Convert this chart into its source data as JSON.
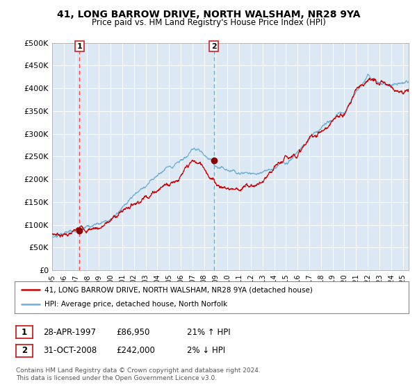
{
  "title": "41, LONG BARROW DRIVE, NORTH WALSHAM, NR28 9YA",
  "subtitle": "Price paid vs. HM Land Registry's House Price Index (HPI)",
  "ylim": [
    0,
    500000
  ],
  "yticks": [
    0,
    50000,
    100000,
    150000,
    200000,
    250000,
    300000,
    350000,
    400000,
    450000,
    500000
  ],
  "ytick_labels": [
    "£0",
    "£50K",
    "£100K",
    "£150K",
    "£200K",
    "£250K",
    "£300K",
    "£350K",
    "£400K",
    "£450K",
    "£500K"
  ],
  "sale1_date": 1997.33,
  "sale1_price": 86950,
  "sale1_label": "1",
  "sale2_date": 2008.83,
  "sale2_price": 242000,
  "sale2_label": "2",
  "hpi_color": "#6baed6",
  "price_color": "#cc0000",
  "dot_color": "#880000",
  "vline1_color": "#ff4444",
  "vline1_style": "--",
  "vline2_color": "#6baed6",
  "vline2_style": "--",
  "bg_color": "#dce9f5",
  "grid_color": "#ffffff",
  "legend_label1": "41, LONG BARROW DRIVE, NORTH WALSHAM, NR28 9YA (detached house)",
  "legend_label2": "HPI: Average price, detached house, North Norfolk",
  "info1_label": "1",
  "info1_date": "28-APR-1997",
  "info1_price": "£86,950",
  "info1_hpi": "21% ↑ HPI",
  "info2_label": "2",
  "info2_date": "31-OCT-2008",
  "info2_price": "£242,000",
  "info2_hpi": "2% ↓ HPI",
  "footer": "Contains HM Land Registry data © Crown copyright and database right 2024.\nThis data is licensed under the Open Government Licence v3.0.",
  "xlim_start": 1995.0,
  "xlim_end": 2025.5
}
